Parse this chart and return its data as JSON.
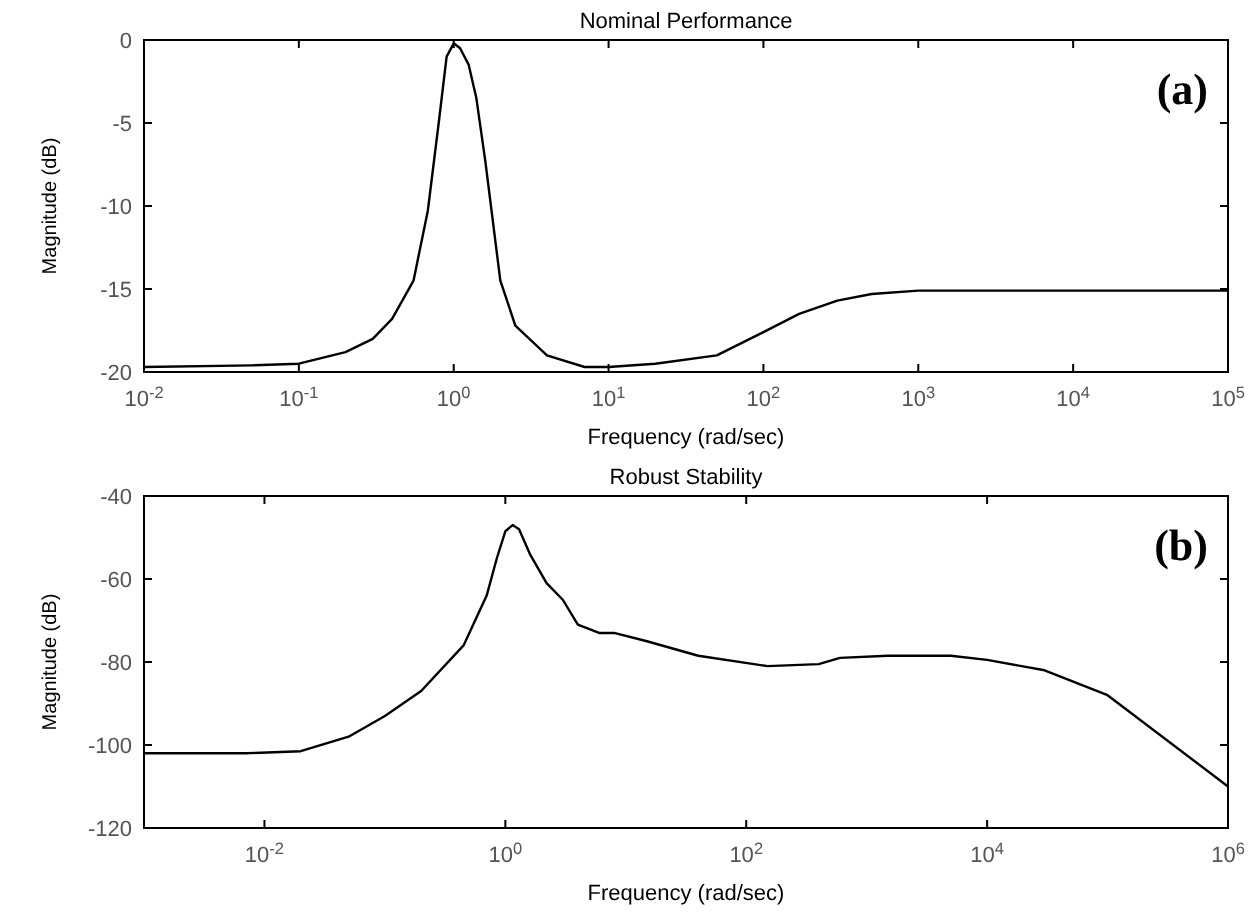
{
  "chart_data": [
    {
      "type": "line",
      "title": "Nominal Performance",
      "xlabel": "Frequency  (rad/sec)",
      "ylabel": "Magnitude (dB)",
      "annotations": [
        "(a)"
      ],
      "log": "x",
      "grid": false,
      "marker": "none",
      "line_style": "solid",
      "x": [
        0.01,
        0.05,
        0.1,
        0.2,
        0.3,
        0.4,
        0.55,
        0.68,
        0.8,
        0.9,
        1.0,
        1.1,
        1.25,
        1.4,
        1.6,
        2.0,
        2.5,
        4,
        7,
        10,
        20,
        50,
        100,
        170,
        300,
        500,
        1000,
        100000
      ],
      "series": [
        {
          "color": "#000000",
          "values": [
            -19.7,
            -19.6,
            -19.5,
            -18.8,
            -18,
            -16.8,
            -14.5,
            -10.3,
            -5,
            -1,
            -0.2,
            -0.5,
            -1.5,
            -3.5,
            -7.3,
            -14.5,
            -17.2,
            -19,
            -19.7,
            -19.7,
            -19.5,
            -19,
            -17.6,
            -16.5,
            -15.7,
            -15.3,
            -15.1,
            -15.1
          ]
        }
      ],
      "xlim": [
        0.01,
        100000
      ],
      "xticks": [
        {
          "value": 0.01,
          "label": "10$^{-2}$"
        },
        {
          "value": 0.1,
          "label": "10$^{-1}$"
        },
        {
          "value": 1,
          "label": "10$^{0}$"
        },
        {
          "value": 10,
          "label": "10$^{1}$"
        },
        {
          "value": 100,
          "label": "10$^{2}$"
        },
        {
          "value": 1000,
          "label": "10$^{3}$"
        },
        {
          "value": 10000,
          "label": "10$^{4}$"
        },
        {
          "value": 100000,
          "label": "10$^{5}$"
        }
      ],
      "ylim": [
        -20,
        0
      ],
      "yticks": [
        -20,
        -15,
        -10,
        -5,
        0
      ]
    },
    {
      "type": "line",
      "title": "Robust Stability",
      "xlabel": "Frequency  (rad/sec)",
      "ylabel": "Magnitude (dB)",
      "annotations": [
        "(b)"
      ],
      "log": "x",
      "grid": false,
      "marker": "none",
      "line_style": "solid",
      "x": [
        0.001,
        0.007,
        0.02,
        0.05,
        0.1,
        0.2,
        0.45,
        0.7,
        0.85,
        1.0,
        1.15,
        1.3,
        1.6,
        2.2,
        3,
        4,
        6,
        8,
        15,
        40,
        150,
        400,
        600,
        1500,
        5000,
        10000,
        30000,
        100000,
        1000000
      ],
      "series": [
        {
          "color": "#000000",
          "values": [
            -102,
            -102,
            -101.5,
            -98,
            -93,
            -87,
            -76,
            -64,
            -55,
            -48.5,
            -47,
            -48,
            -54,
            -61,
            -65,
            -71,
            -73,
            -73,
            -75,
            -78.5,
            -81,
            -80.5,
            -79,
            -78.5,
            -78.5,
            -79.5,
            -82,
            -88,
            -110
          ]
        }
      ],
      "xlim": [
        0.001,
        1000000
      ],
      "xticks": [
        {
          "value": 0.01,
          "label": "10$^{-2}$"
        },
        {
          "value": 1,
          "label": "10$^{0}$"
        },
        {
          "value": 100,
          "label": "10$^{2}$"
        },
        {
          "value": 10000,
          "label": "10$^{4}$"
        },
        {
          "value": 1000000,
          "label": "10$^{6}$"
        }
      ],
      "ylim": [
        -120,
        -40
      ],
      "yticks": [
        -120,
        -100,
        -80,
        -60,
        -40
      ]
    }
  ]
}
